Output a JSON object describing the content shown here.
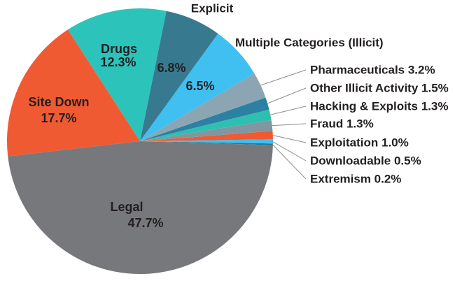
{
  "figure": {
    "background": "#FFFFFF"
  },
  "chart_data": {
    "type": "pie",
    "unit": "%",
    "direction": "counterclockwise",
    "start_angle_deg": -1.7,
    "legend_position": "none",
    "grid": false,
    "text_color": "#231F20",
    "leader_line_color": "#8E8E8E",
    "slices": [
      {
        "name": "Extremism",
        "pct": 0.2,
        "color": "#1F7A9C",
        "label_mode": "callout"
      },
      {
        "name": "Downloadable",
        "pct": 0.5,
        "color": "#3FC0F1",
        "label_mode": "callout"
      },
      {
        "name": "Exploitation",
        "pct": 1.0,
        "color": "#F05A33",
        "label_mode": "callout"
      },
      {
        "name": "Fraud",
        "pct": 1.3,
        "color": "#8096A0",
        "label_mode": "callout"
      },
      {
        "name": "Hacking & Exploits",
        "pct": 1.3,
        "color": "#2EBFB0",
        "label_mode": "callout"
      },
      {
        "name": "Other Illicit Activity",
        "pct": 1.5,
        "color": "#2C80A4",
        "label_mode": "callout"
      },
      {
        "name": "Pharmaceuticals",
        "pct": 3.2,
        "color": "#8CA5B3",
        "label_mode": "callout"
      },
      {
        "name": "Multiple Categories (Illicit)",
        "pct": 6.5,
        "color": "#3FC0F1",
        "label_mode": "pct-inside-name-outside"
      },
      {
        "name": "Explicit",
        "pct": 6.8,
        "color": "#377A8F",
        "label_mode": "pct-inside-name-outside"
      },
      {
        "name": "Drugs",
        "pct": 12.3,
        "color": "#2CC3BB",
        "label_mode": "inside"
      },
      {
        "name": "Site Down",
        "pct": 17.7,
        "color": "#F05A33",
        "label_mode": "inside"
      },
      {
        "name": "Legal",
        "pct": 47.7,
        "color": "#77787B",
        "label_mode": "inside"
      }
    ]
  }
}
